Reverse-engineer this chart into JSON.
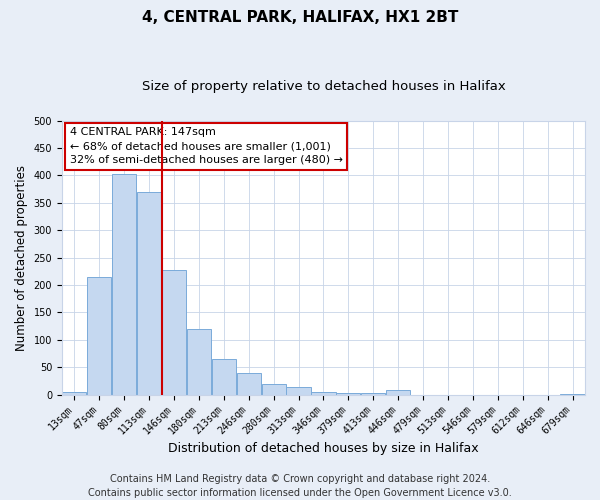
{
  "title": "4, CENTRAL PARK, HALIFAX, HX1 2BT",
  "subtitle": "Size of property relative to detached houses in Halifax",
  "xlabel": "Distribution of detached houses by size in Halifax",
  "ylabel": "Number of detached properties",
  "bar_labels": [
    "13sqm",
    "47sqm",
    "80sqm",
    "113sqm",
    "146sqm",
    "180sqm",
    "213sqm",
    "246sqm",
    "280sqm",
    "313sqm",
    "346sqm",
    "379sqm",
    "413sqm",
    "446sqm",
    "479sqm",
    "513sqm",
    "546sqm",
    "579sqm",
    "612sqm",
    "646sqm",
    "679sqm"
  ],
  "bar_values": [
    5,
    215,
    403,
    370,
    228,
    120,
    65,
    40,
    20,
    14,
    5,
    3,
    3,
    8,
    0,
    0,
    0,
    0,
    0,
    0,
    2
  ],
  "bar_color": "#c5d8f0",
  "bar_edge_color": "#7aabda",
  "vline_color": "#cc0000",
  "vline_x_idx": 4,
  "ylim": [
    0,
    500
  ],
  "annotation_title": "4 CENTRAL PARK: 147sqm",
  "annotation_line1": "← 68% of detached houses are smaller (1,001)",
  "annotation_line2": "32% of semi-detached houses are larger (480) →",
  "annotation_box_color": "#cc0000",
  "footer_line1": "Contains HM Land Registry data © Crown copyright and database right 2024.",
  "footer_line2": "Contains public sector information licensed under the Open Government Licence v3.0.",
  "bg_color": "#e8eef7",
  "plot_bg_color": "#ffffff",
  "grid_color": "#c8d4e8",
  "title_fontsize": 11,
  "subtitle_fontsize": 9.5,
  "xlabel_fontsize": 9,
  "ylabel_fontsize": 8.5,
  "tick_fontsize": 7,
  "annotation_fontsize": 8,
  "footer_fontsize": 7
}
